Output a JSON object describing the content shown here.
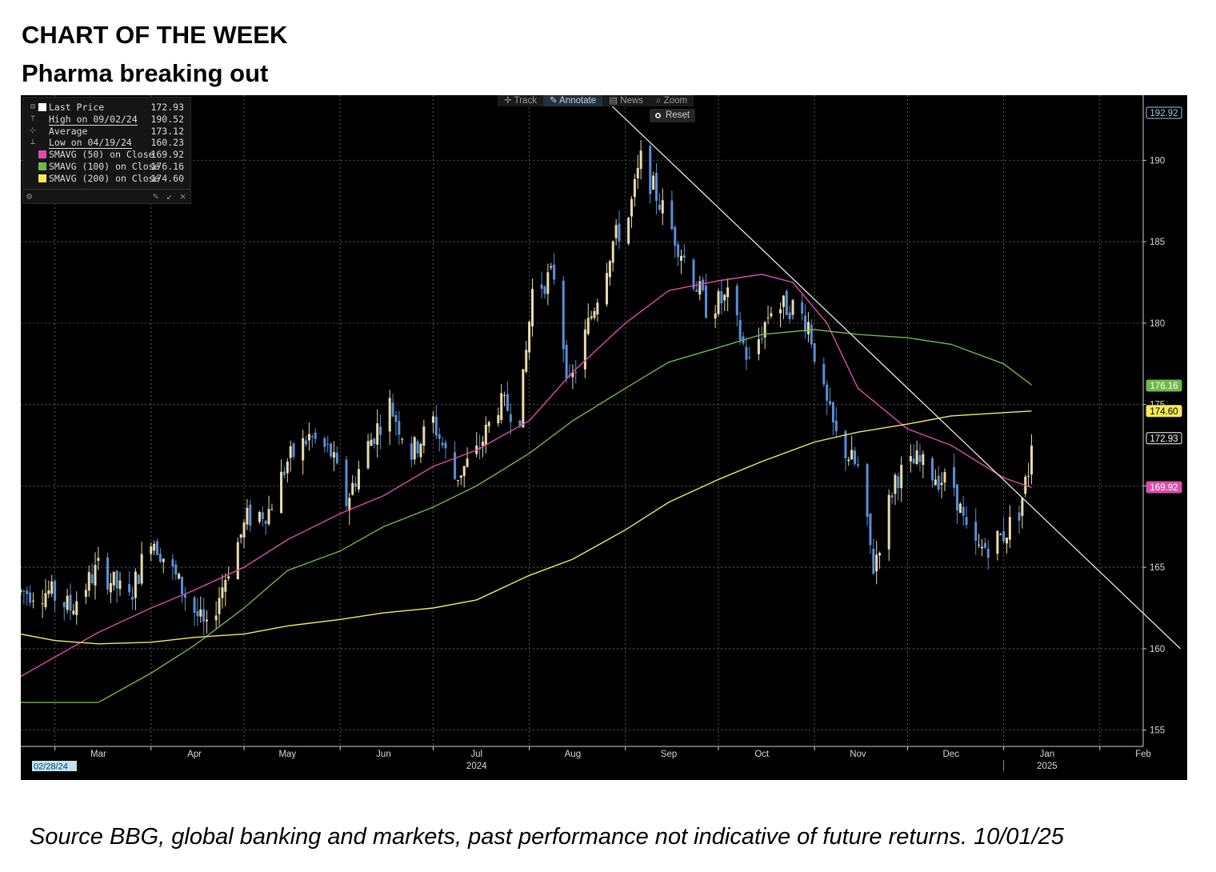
{
  "header": {
    "title": "CHART OF THE WEEK",
    "subtitle": "Pharma breaking out"
  },
  "footnote": "Source BBG, global banking and markets, past performance not indicative of future returns. 10/01/25",
  "toolbar": {
    "track": "Track",
    "annotate": "Annotate",
    "news": "News",
    "zoom": "Zoom",
    "reset": "Reset"
  },
  "legend": [
    {
      "label": "Last Price",
      "value": "172.93",
      "swatch": "#ffffff",
      "style": "highlight"
    },
    {
      "label": "High on 09/02/24",
      "value": "190.52",
      "swatch": "",
      "style": "underline"
    },
    {
      "label": "Average",
      "value": "173.12",
      "swatch": "",
      "style": "highlight"
    },
    {
      "label": "Low on 04/19/24",
      "value": "160.23",
      "swatch": "",
      "style": "underline"
    },
    {
      "label": "SMAVG (50)  on Close",
      "value": "169.92",
      "swatch": "#d94fa8",
      "style": "plain"
    },
    {
      "label": "SMAVG (100)  on Close",
      "value": "176.16",
      "swatch": "#6fb84a",
      "style": "plain"
    },
    {
      "label": "SMAVG (200)  on Close",
      "value": "174.60",
      "swatch": "#f3ec5a",
      "style": "plain"
    }
  ],
  "chart_data": {
    "type": "line",
    "ylim": [
      154,
      194
    ],
    "xlim": [
      "2024-02-19",
      "2025-02-15"
    ],
    "yticks": [
      155,
      160,
      165,
      170,
      175,
      180,
      185,
      190
    ],
    "month_ticks": [
      {
        "label": "Mar",
        "date": "2024-03-15"
      },
      {
        "label": "Apr",
        "date": "2024-04-15"
      },
      {
        "label": "May",
        "date": "2024-05-15"
      },
      {
        "label": "Jun",
        "date": "2024-06-15"
      },
      {
        "label": "Jul",
        "date": "2024-07-15"
      },
      {
        "label": "Aug",
        "date": "2024-08-15"
      },
      {
        "label": "Sep",
        "date": "2024-09-15"
      },
      {
        "label": "Oct",
        "date": "2024-10-15"
      },
      {
        "label": "Nov",
        "date": "2024-11-15"
      },
      {
        "label": "Dec",
        "date": "2024-12-15"
      },
      {
        "label": "Jan",
        "date": "2025-01-15"
      },
      {
        "label": "Feb",
        "date": "2025-02-15"
      }
    ],
    "year_labels": [
      {
        "label": "2024",
        "date": "2024-07-15"
      },
      {
        "label": "2025",
        "date": "2025-01-15"
      }
    ],
    "start_date_label": "02/28/24",
    "price_path": [
      [
        "2024-02-19",
        163.5
      ],
      [
        "2024-02-28",
        163.5
      ],
      [
        "2024-03-06",
        162.5
      ],
      [
        "2024-03-15",
        165.0
      ],
      [
        "2024-03-25",
        163.0
      ],
      [
        "2024-04-01",
        167.0
      ],
      [
        "2024-04-10",
        164.0
      ],
      [
        "2024-04-19",
        161.0
      ],
      [
        "2024-04-26",
        165.0
      ],
      [
        "2024-05-02",
        168.0
      ],
      [
        "2024-05-09",
        168.5
      ],
      [
        "2024-05-15",
        171.5
      ],
      [
        "2024-05-22",
        173.0
      ],
      [
        "2024-05-29",
        172.0
      ],
      [
        "2024-06-03",
        169.0
      ],
      [
        "2024-06-10",
        172.5
      ],
      [
        "2024-06-17",
        175.0
      ],
      [
        "2024-06-24",
        172.0
      ],
      [
        "2024-07-01",
        174.0
      ],
      [
        "2024-07-08",
        170.5
      ],
      [
        "2024-07-15",
        172.0
      ],
      [
        "2024-07-22",
        175.0
      ],
      [
        "2024-07-29",
        174.5
      ],
      [
        "2024-08-02",
        182.0
      ],
      [
        "2024-08-09",
        183.0
      ],
      [
        "2024-08-14",
        176.0
      ],
      [
        "2024-08-21",
        180.5
      ],
      [
        "2024-08-28",
        185.0
      ],
      [
        "2024-09-02",
        186.5
      ],
      [
        "2024-09-06",
        190.0
      ],
      [
        "2024-09-13",
        187.0
      ],
      [
        "2024-09-20",
        184.0
      ],
      [
        "2024-09-27",
        181.0
      ],
      [
        "2024-10-04",
        181.5
      ],
      [
        "2024-10-11",
        177.5
      ],
      [
        "2024-10-18",
        181.0
      ],
      [
        "2024-10-25",
        181.0
      ],
      [
        "2024-10-30",
        180.0
      ],
      [
        "2024-11-04",
        175.5
      ],
      [
        "2024-11-08",
        173.0
      ],
      [
        "2024-11-15",
        171.0
      ],
      [
        "2024-11-20",
        165.0
      ],
      [
        "2024-11-27",
        170.5
      ],
      [
        "2024-12-04",
        171.5
      ],
      [
        "2024-12-11",
        170.5
      ],
      [
        "2024-12-16",
        170.0
      ],
      [
        "2024-12-20",
        167.0
      ],
      [
        "2024-12-24",
        166.0
      ],
      [
        "2025-01-01",
        167.0
      ],
      [
        "2025-01-06",
        168.5
      ],
      [
        "2025-01-09",
        171.0
      ],
      [
        "2025-01-10",
        172.9
      ]
    ],
    "trendline": [
      [
        "2024-08-24",
        194
      ],
      [
        "2025-02-27",
        160
      ]
    ],
    "series": [
      {
        "name": "SMAVG (50)  on Close",
        "color": "#d94fa8",
        "points": [
          [
            "2024-02-19",
            158.3
          ],
          [
            "2024-03-15",
            161.0
          ],
          [
            "2024-04-01",
            162.5
          ],
          [
            "2024-04-15",
            163.6
          ],
          [
            "2024-05-01",
            165.0
          ],
          [
            "2024-05-15",
            166.7
          ],
          [
            "2024-06-01",
            168.3
          ],
          [
            "2024-06-15",
            169.4
          ],
          [
            "2024-07-01",
            171.2
          ],
          [
            "2024-07-15",
            172.2
          ],
          [
            "2024-08-01",
            174.0
          ],
          [
            "2024-08-15",
            177.0
          ],
          [
            "2024-09-01",
            180.0
          ],
          [
            "2024-09-15",
            182.0
          ],
          [
            "2024-10-01",
            182.6
          ],
          [
            "2024-10-15",
            183.0
          ],
          [
            "2024-10-25",
            182.5
          ],
          [
            "2024-11-05",
            180.0
          ],
          [
            "2024-11-15",
            176.0
          ],
          [
            "2024-12-01",
            173.5
          ],
          [
            "2024-12-15",
            172.5
          ],
          [
            "2025-01-01",
            170.5
          ],
          [
            "2025-01-10",
            169.9
          ]
        ]
      },
      {
        "name": "SMAVG (100)  on Close",
        "color": "#6fb84a",
        "points": [
          [
            "2024-02-19",
            156.7
          ],
          [
            "2024-03-15",
            156.7
          ],
          [
            "2024-04-01",
            158.5
          ],
          [
            "2024-04-15",
            160.2
          ],
          [
            "2024-05-01",
            162.5
          ],
          [
            "2024-05-15",
            164.8
          ],
          [
            "2024-06-01",
            166.0
          ],
          [
            "2024-06-15",
            167.5
          ],
          [
            "2024-07-01",
            168.7
          ],
          [
            "2024-07-15",
            170.0
          ],
          [
            "2024-08-01",
            172.0
          ],
          [
            "2024-08-15",
            174.0
          ],
          [
            "2024-09-01",
            176.0
          ],
          [
            "2024-09-15",
            177.6
          ],
          [
            "2024-10-01",
            178.5
          ],
          [
            "2024-10-15",
            179.3
          ],
          [
            "2024-11-01",
            179.6
          ],
          [
            "2024-11-15",
            179.3
          ],
          [
            "2024-12-01",
            179.1
          ],
          [
            "2024-12-15",
            178.7
          ],
          [
            "2025-01-01",
            177.5
          ],
          [
            "2025-01-10",
            176.2
          ]
        ]
      },
      {
        "name": "SMAVG (200)  on Close",
        "color": "#f3ec5a",
        "points": [
          [
            "2024-02-19",
            160.9
          ],
          [
            "2024-03-01",
            160.5
          ],
          [
            "2024-03-15",
            160.3
          ],
          [
            "2024-04-01",
            160.4
          ],
          [
            "2024-04-15",
            160.7
          ],
          [
            "2024-05-01",
            160.9
          ],
          [
            "2024-05-15",
            161.4
          ],
          [
            "2024-06-01",
            161.8
          ],
          [
            "2024-06-15",
            162.2
          ],
          [
            "2024-07-01",
            162.5
          ],
          [
            "2024-07-15",
            163.0
          ],
          [
            "2024-08-01",
            164.5
          ],
          [
            "2024-08-15",
            165.5
          ],
          [
            "2024-09-01",
            167.3
          ],
          [
            "2024-09-15",
            169.0
          ],
          [
            "2024-10-01",
            170.4
          ],
          [
            "2024-10-15",
            171.5
          ],
          [
            "2024-11-01",
            172.7
          ],
          [
            "2024-11-15",
            173.3
          ],
          [
            "2024-12-01",
            173.8
          ],
          [
            "2024-12-15",
            174.3
          ],
          [
            "2025-01-01",
            174.5
          ],
          [
            "2025-01-10",
            174.6
          ]
        ]
      }
    ],
    "value_tags": [
      {
        "text": "192.92",
        "value": 192.92,
        "fill": "#000000",
        "text_color": "#9ec8e8",
        "border": "#9ec8e8"
      },
      {
        "text": "176.16",
        "value": 176.16,
        "fill": "#6fb84a",
        "text_color": "#ffffff",
        "border": "#6fb84a"
      },
      {
        "text": "174.60",
        "value": 174.6,
        "fill": "#f3ec5a",
        "text_color": "#000000",
        "border": "#f3ec5a"
      },
      {
        "text": "172.93",
        "value": 172.93,
        "fill": "#000000",
        "text_color": "#ffffff",
        "border": "#ffffff"
      },
      {
        "text": "169.92",
        "value": 169.92,
        "fill": "#d94fa8",
        "text_color": "#ffffff",
        "border": "#d94fa8"
      }
    ],
    "colors": {
      "bull": "#e8dcae",
      "bear": "#5b8fd6",
      "grid": "#5a5a5a",
      "trendline": "#e6e6e6",
      "axis_text": "#d8d8d8"
    }
  }
}
